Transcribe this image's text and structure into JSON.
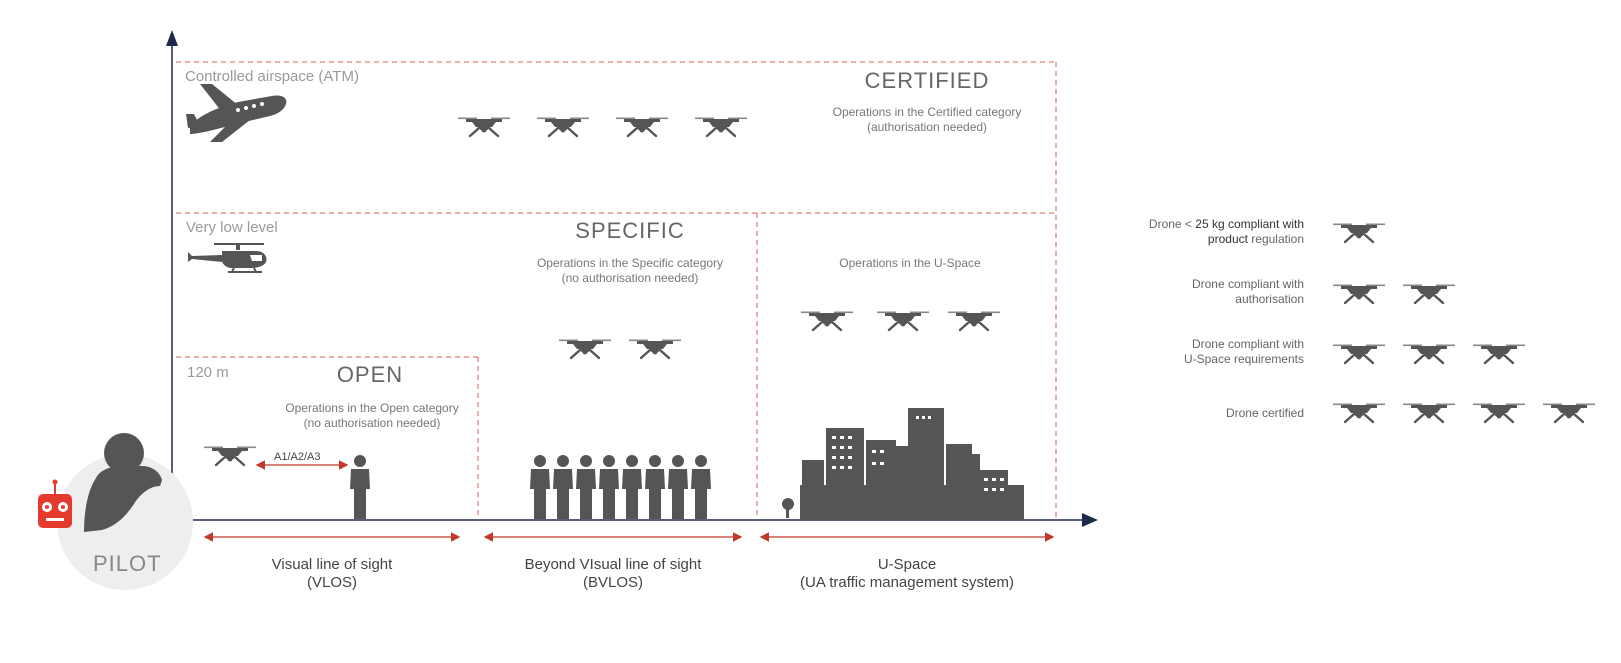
{
  "zones": {
    "controlled": "Controlled airspace (ATM)",
    "very_low": "Very low level",
    "height": "120 m"
  },
  "categories": {
    "open": {
      "title": "OPEN",
      "desc_1": "Operations in the Open category",
      "desc_2": "(no authorisation needed)"
    },
    "specific": {
      "title": "SPECIFIC",
      "desc_1": "Operations in the Specific category",
      "desc_2": "(no authorisation needed)"
    },
    "certified": {
      "title": "CERTIFIED",
      "desc_1": "Operations in the Certified category",
      "desc_2": "(authorisation needed)"
    },
    "uspace": {
      "desc": "Operations in the U-Space"
    }
  },
  "vlos_subcategories": "A1/A2/A3",
  "x_axis": {
    "vlos": {
      "line1": "Visual line of sight",
      "line2": "(VLOS)"
    },
    "bvlos": {
      "line1": "Beyond VIsual line of sight",
      "line2": "(BVLOS)"
    },
    "uspace": {
      "line1": "U-Space",
      "line2": "(UA traffic management system)"
    }
  },
  "pilot": "PILOT",
  "legend": [
    {
      "line1_pre": "Drone < ",
      "line1_bold": "25 kg compliant with",
      "line2_bold": "product",
      "line2_post": " regulation",
      "drones": 1
    },
    {
      "line1": "Drone compliant with",
      "line2": "authorisation",
      "drones": 2
    },
    {
      "line1": "Drone compliant with",
      "line2": "U-Space requirements",
      "drones": 3
    },
    {
      "line1": "Drone certified",
      "drones": 4
    }
  ],
  "colors": {
    "icon": "#555555",
    "dash": "#d0604e",
    "axis": "#1f2a4a",
    "arrow_red": "#c0392b",
    "remote": "#e53b2f",
    "pilot_bg": "#eeeeee"
  }
}
